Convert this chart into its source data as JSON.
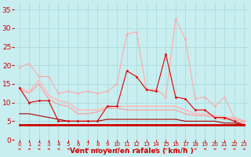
{
  "bg_color": "#c8eef0",
  "grid_color": "#aadddd",
  "xlabel": "Vent moyen/en rafales ( km/h )",
  "xlabel_color": "#cc0000",
  "xlabel_fontsize": 6.5,
  "tick_color": "#cc0000",
  "ytick_fontsize": 6.5,
  "xtick_fontsize": 5.0,
  "ylim": [
    0,
    37
  ],
  "xlim": [
    -0.5,
    23.5
  ],
  "yticks": [
    0,
    5,
    10,
    15,
    20,
    25,
    30,
    35
  ],
  "xticks": [
    0,
    1,
    2,
    3,
    4,
    5,
    6,
    7,
    8,
    9,
    10,
    11,
    12,
    13,
    14,
    15,
    16,
    17,
    18,
    19,
    20,
    21,
    22,
    23
  ],
  "series": [
    {
      "x": [
        0,
        1,
        2,
        3,
        4,
        5,
        6,
        7,
        8,
        9,
        10,
        11,
        12,
        13,
        14,
        15,
        16,
        17,
        18,
        19,
        20,
        21,
        22,
        23
      ],
      "y": [
        14,
        10,
        10.5,
        10.5,
        5,
        5,
        5,
        5,
        5,
        9,
        9,
        18.5,
        17,
        13.5,
        13,
        23,
        11.5,
        11,
        8,
        8,
        6,
        6,
        5,
        4
      ],
      "color": "#dd0000",
      "lw": 0.8,
      "marker": "D",
      "ms": 1.5,
      "zorder": 5
    },
    {
      "x": [
        0,
        1,
        2,
        3,
        4,
        5,
        6,
        7,
        8,
        9,
        10,
        11,
        12,
        13,
        14,
        15,
        16,
        17,
        18,
        19,
        20,
        21,
        22,
        23
      ],
      "y": [
        4,
        4,
        4,
        4,
        4,
        4,
        4,
        4,
        4,
        4,
        4,
        4,
        4,
        4,
        4,
        4,
        4,
        4,
        4,
        4,
        4,
        4,
        4,
        4
      ],
      "color": "#cc0000",
      "lw": 2.0,
      "marker": null,
      "ms": 0,
      "zorder": 3
    },
    {
      "x": [
        0,
        1,
        2,
        3,
        4,
        5,
        6,
        7,
        8,
        9,
        10,
        11,
        12,
        13,
        14,
        15,
        16,
        17,
        18,
        19,
        20,
        21,
        22,
        23
      ],
      "y": [
        19.5,
        20.5,
        17,
        17,
        12.5,
        13,
        12.5,
        13,
        12.5,
        13,
        15,
        28.5,
        29,
        13.5,
        13.5,
        11.5,
        32.5,
        27,
        11,
        11.5,
        9,
        11.5,
        6,
        5
      ],
      "color": "#ffaaaa",
      "lw": 0.8,
      "marker": "D",
      "ms": 1.5,
      "zorder": 4
    },
    {
      "x": [
        0,
        1,
        2,
        3,
        4,
        5,
        6,
        7,
        8,
        9,
        10,
        11,
        12,
        13,
        14,
        15,
        16,
        17,
        18,
        19,
        20,
        21,
        22,
        23
      ],
      "y": [
        14,
        13,
        16,
        12,
        10.5,
        10,
        8,
        8,
        8,
        9,
        9,
        9,
        9,
        9,
        9,
        9,
        9,
        8,
        7,
        7,
        6.5,
        6,
        6,
        5
      ],
      "color": "#ffbbbb",
      "lw": 1.2,
      "marker": null,
      "ms": 0,
      "zorder": 2
    },
    {
      "x": [
        0,
        1,
        2,
        3,
        4,
        5,
        6,
        7,
        8,
        9,
        10,
        11,
        12,
        13,
        14,
        15,
        16,
        17,
        18,
        19,
        20,
        21,
        22,
        23
      ],
      "y": [
        13.5,
        12.5,
        15,
        11,
        9.5,
        9,
        7,
        7,
        7.5,
        8.5,
        8.5,
        8,
        8,
        8,
        8,
        8,
        8,
        7,
        6.5,
        6.5,
        6,
        5.5,
        5.5,
        4.5
      ],
      "color": "#ff9999",
      "lw": 0.8,
      "marker": null,
      "ms": 0,
      "zorder": 2
    },
    {
      "x": [
        0,
        1,
        2,
        3,
        4,
        5,
        6,
        7,
        8,
        9,
        10,
        11,
        12,
        13,
        14,
        15,
        16,
        17,
        18,
        19,
        20,
        21,
        22,
        23
      ],
      "y": [
        7,
        7,
        6.5,
        6,
        5.5,
        5,
        5,
        5,
        5,
        5.5,
        5.5,
        5.5,
        5.5,
        5.5,
        5.5,
        5.5,
        5.5,
        5,
        5,
        5,
        5,
        4.5,
        4.5,
        4
      ],
      "color": "#aa0000",
      "lw": 0.8,
      "marker": null,
      "ms": 0,
      "zorder": 2
    }
  ],
  "arrow_color": "#dd2222"
}
